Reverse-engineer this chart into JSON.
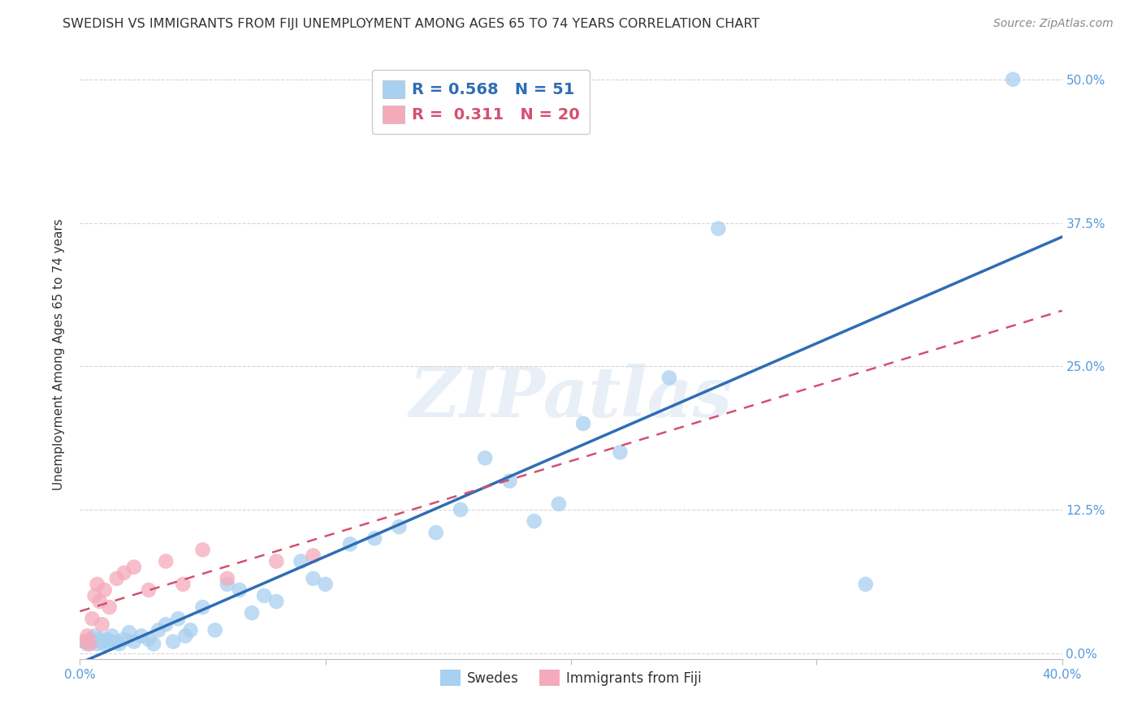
{
  "title": "SWEDISH VS IMMIGRANTS FROM FIJI UNEMPLOYMENT AMONG AGES 65 TO 74 YEARS CORRELATION CHART",
  "source": "Source: ZipAtlas.com",
  "ylabel": "Unemployment Among Ages 65 to 74 years",
  "xlim": [
    0.0,
    0.4
  ],
  "ylim": [
    -0.005,
    0.525
  ],
  "swedes_R": 0.568,
  "swedes_N": 51,
  "fiji_R": 0.311,
  "fiji_N": 20,
  "swedes_color": "#A8D0F0",
  "swedes_line_color": "#2E6DB4",
  "fiji_color": "#F5AABB",
  "fiji_line_color": "#D45070",
  "background_color": "#FFFFFF",
  "grid_color": "#CCCCCC",
  "title_color": "#333333",
  "axis_label_color": "#5599DD",
  "watermark": "ZIPatlas",
  "swedes_x": [
    0.002,
    0.003,
    0.004,
    0.005,
    0.006,
    0.007,
    0.008,
    0.009,
    0.01,
    0.011,
    0.012,
    0.013,
    0.015,
    0.016,
    0.018,
    0.02,
    0.022,
    0.025,
    0.028,
    0.03,
    0.032,
    0.035,
    0.038,
    0.04,
    0.043,
    0.045,
    0.05,
    0.055,
    0.06,
    0.065,
    0.07,
    0.075,
    0.08,
    0.09,
    0.095,
    0.1,
    0.11,
    0.12,
    0.13,
    0.145,
    0.155,
    0.165,
    0.175,
    0.185,
    0.195,
    0.205,
    0.22,
    0.24,
    0.26,
    0.32,
    0.38
  ],
  "swedes_y": [
    0.01,
    0.008,
    0.012,
    0.01,
    0.015,
    0.008,
    0.012,
    0.01,
    0.008,
    0.012,
    0.01,
    0.015,
    0.01,
    0.008,
    0.012,
    0.018,
    0.01,
    0.015,
    0.012,
    0.008,
    0.02,
    0.025,
    0.01,
    0.03,
    0.015,
    0.02,
    0.04,
    0.02,
    0.06,
    0.055,
    0.035,
    0.05,
    0.045,
    0.08,
    0.065,
    0.06,
    0.095,
    0.1,
    0.11,
    0.105,
    0.125,
    0.17,
    0.15,
    0.115,
    0.13,
    0.2,
    0.175,
    0.24,
    0.37,
    0.06,
    0.5
  ],
  "fiji_x": [
    0.002,
    0.003,
    0.004,
    0.005,
    0.006,
    0.007,
    0.008,
    0.009,
    0.01,
    0.012,
    0.015,
    0.018,
    0.022,
    0.028,
    0.035,
    0.042,
    0.05,
    0.06,
    0.08,
    0.095
  ],
  "fiji_y": [
    0.01,
    0.015,
    0.008,
    0.03,
    0.05,
    0.06,
    0.045,
    0.025,
    0.055,
    0.04,
    0.065,
    0.07,
    0.075,
    0.055,
    0.08,
    0.06,
    0.09,
    0.065,
    0.08,
    0.085
  ]
}
